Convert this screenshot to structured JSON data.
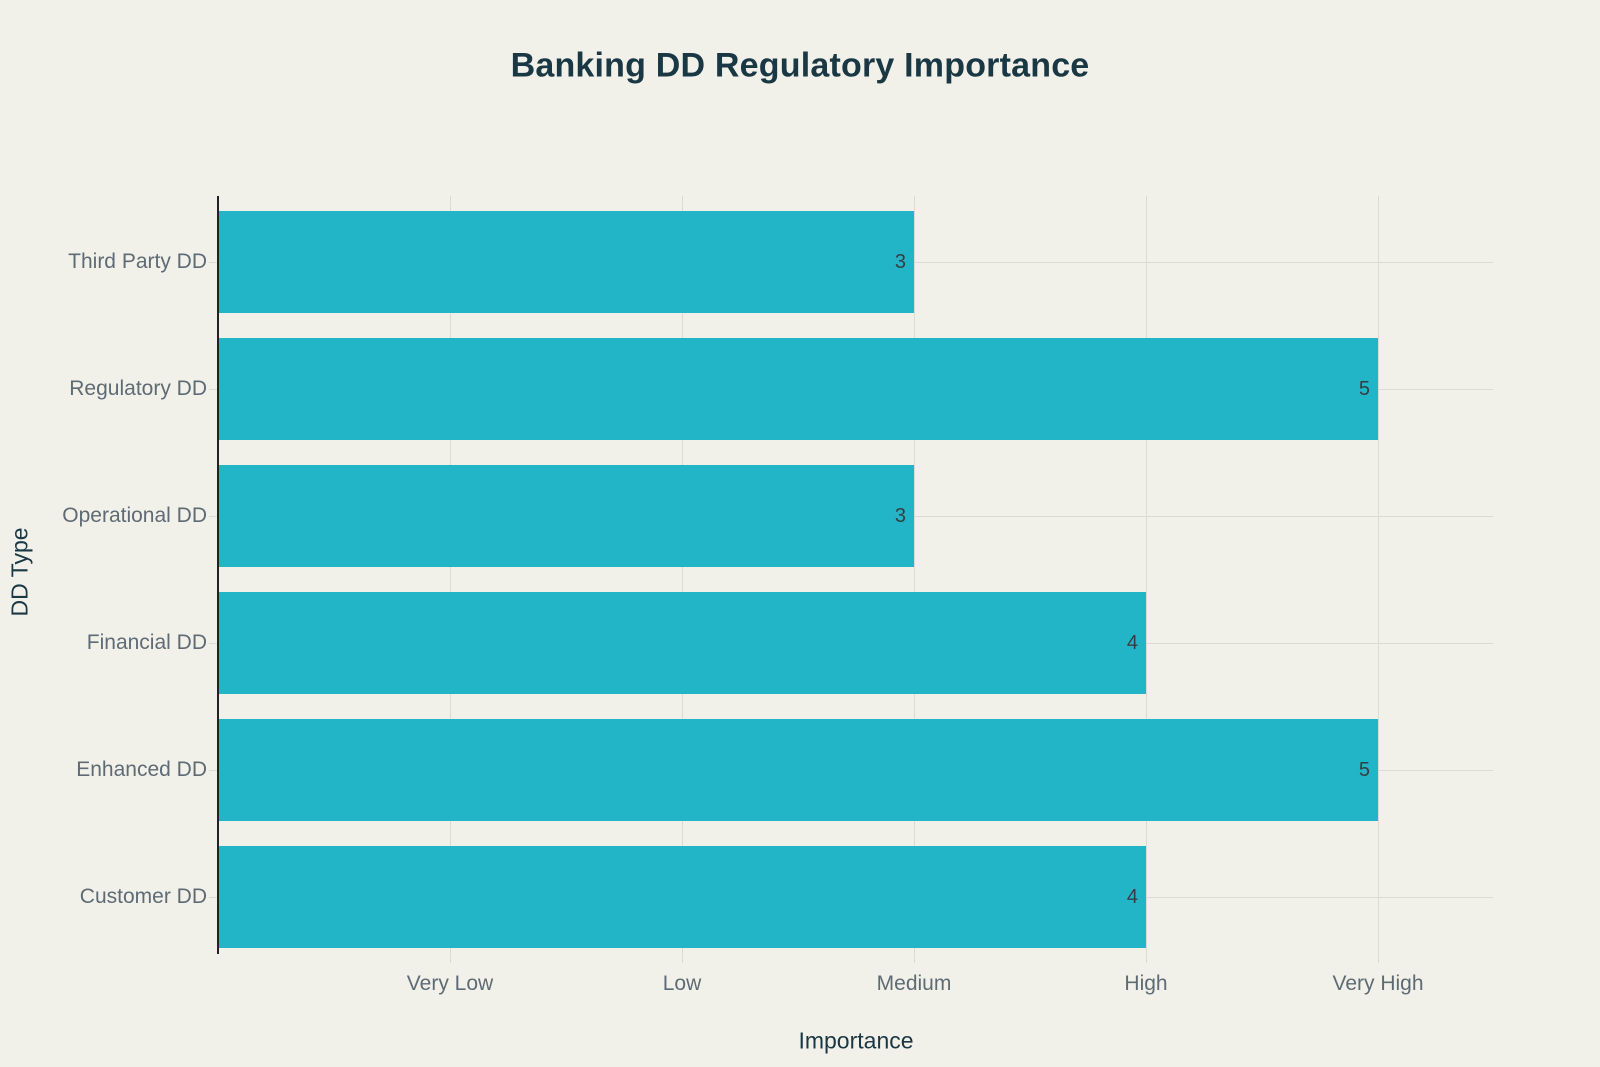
{
  "chart_data": {
    "type": "bar",
    "orientation": "horizontal",
    "title": "Banking DD Regulatory Importance",
    "xlabel": "Importance",
    "ylabel": "DD Type",
    "y_order": "top-to-bottom",
    "categories": [
      "Third Party DD",
      "Regulatory DD",
      "Operational DD",
      "Financial DD",
      "Enhanced DD",
      "Customer DD"
    ],
    "values": [
      3,
      5,
      3,
      4,
      5,
      4
    ],
    "value_labels": [
      "3",
      "5",
      "3",
      "4",
      "5",
      "4"
    ],
    "x_ticks": [
      {
        "value": 1,
        "label": "Very Low"
      },
      {
        "value": 2,
        "label": "Low"
      },
      {
        "value": 3,
        "label": "Medium"
      },
      {
        "value": 4,
        "label": "High"
      },
      {
        "value": 5,
        "label": "Very High"
      }
    ],
    "xlim": [
      0,
      5.5
    ],
    "grid": true,
    "legend": false,
    "colors": {
      "background": "#f1f1ea",
      "bar": "#22b5c8",
      "title_text": "#1a3744",
      "axis_title_text": "#1a3744",
      "tick_text": "#5f6b74",
      "value_text": "#373d42",
      "gridline": "#dcdbd3",
      "axis_line": "#222222"
    }
  }
}
